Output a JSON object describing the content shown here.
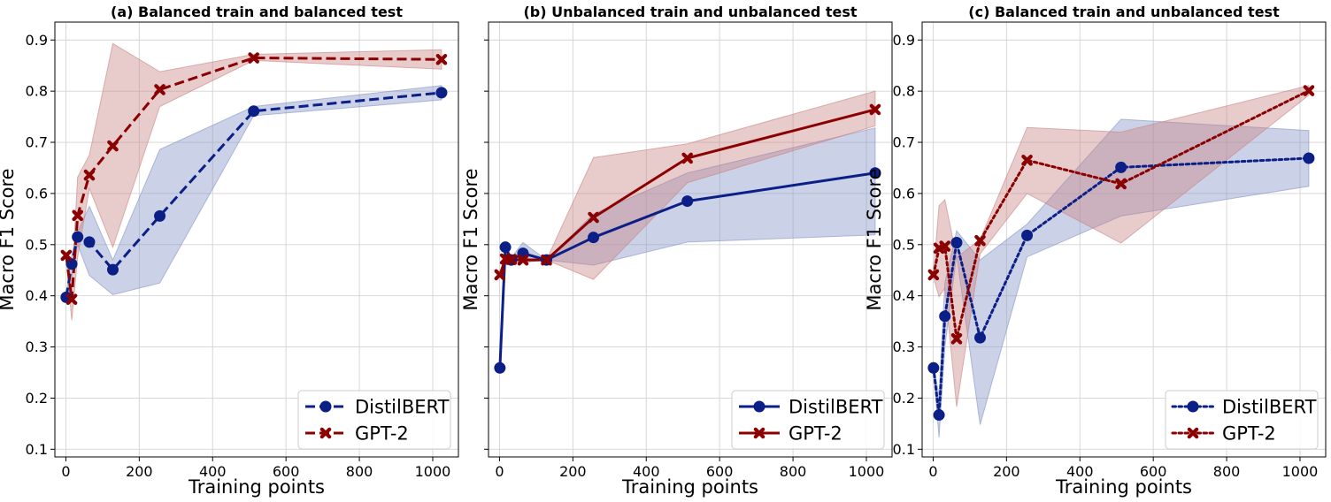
{
  "figure": {
    "tick_labels_x": [
      "0",
      "200",
      "400",
      "600",
      "800",
      "1000"
    ],
    "tick_labels_y": [
      "0.1",
      "0.2",
      "0.3",
      "0.4",
      "0.5",
      "0.6",
      "0.7",
      "0.8",
      "0.9"
    ]
  },
  "colors": {
    "distilbert": "#0b1f87",
    "gpt2": "#8b0000",
    "distilbert_band": "#8493c6",
    "gpt2_band": "#c98484",
    "grid": "#d3d3d3"
  },
  "chart_data": [
    {
      "type": "line",
      "title": "(a) Balanced train and balanced test",
      "xlabel": "Training points",
      "ylabel": "Macro F1 Score",
      "xlim": [
        -30,
        1070
      ],
      "ylim": [
        0.085,
        0.935
      ],
      "grid": true,
      "legend_position": "lower-right",
      "line_style": "dashed",
      "x": [
        1,
        16,
        32,
        64,
        128,
        256,
        512,
        1024
      ],
      "series": [
        {
          "name": "DistilBERT",
          "marker": "circle",
          "values": [
            0.397,
            0.462,
            0.515,
            0.505,
            0.451,
            0.556,
            0.761,
            0.797
          ],
          "lower": [
            0.392,
            0.44,
            0.5,
            0.44,
            0.402,
            0.425,
            0.752,
            0.783
          ],
          "upper": [
            0.402,
            0.48,
            0.525,
            0.575,
            0.47,
            0.686,
            0.77,
            0.811
          ]
        },
        {
          "name": "GPT-2",
          "marker": "x",
          "values": [
            0.479,
            0.393,
            0.557,
            0.636,
            0.693,
            0.803,
            0.865,
            0.862
          ],
          "lower": [
            0.474,
            0.352,
            0.475,
            0.61,
            0.495,
            0.77,
            0.86,
            0.843
          ],
          "upper": [
            0.484,
            0.425,
            0.632,
            0.675,
            0.893,
            0.838,
            0.872,
            0.881
          ]
        }
      ]
    },
    {
      "type": "line",
      "title": "(b) Unbalanced train and unbalanced test",
      "xlabel": "Training points",
      "ylabel": "Macro F1 Score",
      "xlim": [
        -30,
        1070
      ],
      "ylim": [
        0.085,
        0.935
      ],
      "grid": true,
      "legend_position": "lower-right",
      "line_style": "solid",
      "x": [
        1,
        16,
        32,
        64,
        128,
        256,
        512,
        1024
      ],
      "series": [
        {
          "name": "DistilBERT",
          "marker": "circle",
          "values": [
            0.259,
            0.495,
            0.47,
            0.483,
            0.47,
            0.514,
            0.585,
            0.64
          ],
          "lower": [
            0.254,
            0.485,
            0.465,
            0.465,
            0.47,
            0.46,
            0.505,
            0.519
          ],
          "upper": [
            0.264,
            0.505,
            0.475,
            0.504,
            0.47,
            0.56,
            0.64,
            0.728
          ]
        },
        {
          "name": "GPT-2",
          "marker": "x",
          "values": [
            0.441,
            0.472,
            0.471,
            0.47,
            0.47,
            0.553,
            0.669,
            0.764
          ],
          "lower": [
            0.436,
            0.468,
            0.467,
            0.466,
            0.47,
            0.432,
            0.621,
            0.732
          ],
          "upper": [
            0.446,
            0.476,
            0.475,
            0.474,
            0.47,
            0.67,
            0.697,
            0.8
          ]
        }
      ]
    },
    {
      "type": "line",
      "title": "(c) Balanced train and unbalanced test",
      "xlabel": "Training points",
      "ylabel": "Macro F1 Score",
      "xlim": [
        -30,
        1070
      ],
      "ylim": [
        0.085,
        0.935
      ],
      "grid": true,
      "legend_position": "lower-right",
      "line_style": "dotted",
      "x": [
        1,
        16,
        32,
        64,
        128,
        256,
        512,
        1024
      ],
      "series": [
        {
          "name": "DistilBERT",
          "marker": "circle",
          "values": [
            0.259,
            0.167,
            0.36,
            0.504,
            0.318,
            0.518,
            0.651,
            0.669
          ],
          "lower": [
            0.254,
            0.123,
            0.3,
            0.48,
            0.148,
            0.476,
            0.556,
            0.614
          ],
          "upper": [
            0.264,
            0.205,
            0.425,
            0.527,
            0.47,
            0.54,
            0.745,
            0.723
          ]
        },
        {
          "name": "GPT-2",
          "marker": "x",
          "values": [
            0.441,
            0.493,
            0.497,
            0.316,
            0.508,
            0.665,
            0.619,
            0.801
          ],
          "lower": [
            0.436,
            0.398,
            0.415,
            0.183,
            0.482,
            0.6,
            0.503,
            0.792
          ],
          "upper": [
            0.446,
            0.576,
            0.588,
            0.475,
            0.51,
            0.729,
            0.72,
            0.811
          ]
        }
      ]
    }
  ]
}
